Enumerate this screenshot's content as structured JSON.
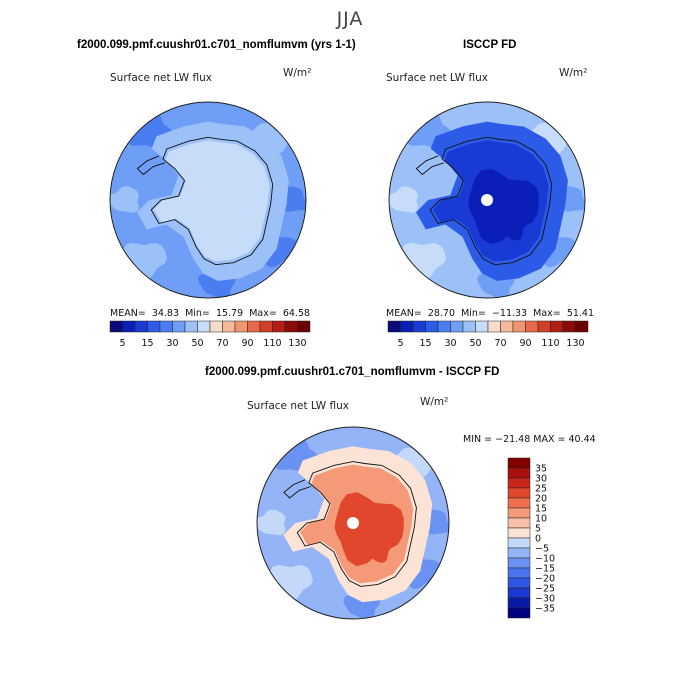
{
  "season": "JJA",
  "panels": {
    "model": {
      "title": "f2000.099.pmf.cuushr01.c701_nomflumvm (yrs 1-1)",
      "field": "Surface net LW flux",
      "units": "W/m²",
      "stats_label": {
        "mean": "MEAN=",
        "min": "Min=",
        "max": "Max="
      },
      "stats": {
        "mean": "34.83",
        "min": "15.79",
        "max": "64.58"
      }
    },
    "obs": {
      "title": "ISCCP FD",
      "field": "Surface net LW flux",
      "units": "W/m²",
      "stats_label": {
        "mean": "MEAN=",
        "min": "Min=",
        "max": "Max="
      },
      "stats": {
        "mean": "28.70",
        "min": "−11.33",
        "max": "51.41"
      }
    },
    "diff": {
      "title": "f2000.099.pmf.cuushr01.c701_nomflumvm - ISCCP FD",
      "field": "Surface net LW flux",
      "units": "W/m²",
      "stats_text": "MIN = −21.48 MAX =  40.44"
    }
  },
  "chart_data": [
    {
      "type": "heatmap",
      "projection": "polar stereographic (Southern Hemisphere)",
      "title": "f2000.099.pmf.cuushr01.c701_nomflumvm (yrs 1-1)",
      "field": "Surface net LW flux",
      "units": "W/m2",
      "stats": {
        "mean": 34.83,
        "min": 15.79,
        "max": 64.58
      },
      "colorbar": {
        "orientation": "horizontal",
        "levels": [
          5,
          10,
          15,
          20,
          30,
          40,
          50,
          60,
          70,
          80,
          90,
          100,
          110,
          120,
          130
        ],
        "tick_labels": [
          "5",
          "15",
          "30",
          "50",
          "70",
          "90",
          "110",
          "130"
        ],
        "colors": [
          "#0a0a7a",
          "#0b1fb8",
          "#1a3ad6",
          "#2c5be8",
          "#4a7ef0",
          "#6e9ef6",
          "#9cc0f8",
          "#c6dcf9",
          "#f6ddca",
          "#f6b99c",
          "#f29470",
          "#e8684a",
          "#d04028",
          "#b21e14",
          "#8c0a0a",
          "#6b0000"
        ]
      },
      "regions": [
        {
          "name": "background ocean",
          "level_index": 5
        },
        {
          "name": "Antarctic interior",
          "level_index": 6
        },
        {
          "name": "high plateau",
          "level_index": 7
        }
      ]
    },
    {
      "type": "heatmap",
      "projection": "polar stereographic (Southern Hemisphere)",
      "title": "ISCCP FD",
      "field": "Surface net LW flux",
      "units": "W/m2",
      "stats": {
        "mean": 28.7,
        "min": -11.33,
        "max": 51.41
      },
      "colorbar": {
        "orientation": "horizontal",
        "levels": [
          5,
          10,
          15,
          20,
          30,
          40,
          50,
          60,
          70,
          80,
          90,
          100,
          110,
          120,
          130
        ],
        "tick_labels": [
          "5",
          "15",
          "30",
          "50",
          "70",
          "90",
          "110",
          "130"
        ],
        "colors": [
          "#0a0a7a",
          "#0b1fb8",
          "#1a3ad6",
          "#2c5be8",
          "#4a7ef0",
          "#6e9ef6",
          "#9cc0f8",
          "#c6dcf9",
          "#f6ddca",
          "#f6b99c",
          "#f29470",
          "#e8684a",
          "#d04028",
          "#b21e14",
          "#8c0a0a",
          "#6b0000"
        ]
      },
      "regions": [
        {
          "name": "outer ocean",
          "level_index": 6
        },
        {
          "name": "sea ice zone",
          "level_index": 3
        },
        {
          "name": "Antarctic interior",
          "level_index": 1
        }
      ]
    },
    {
      "type": "heatmap",
      "projection": "polar stereographic (Southern Hemisphere)",
      "title": "f2000.099.pmf.cuushr01.c701_nomflumvm - ISCCP FD",
      "field": "Surface net LW flux",
      "units": "W/m2",
      "stats": {
        "min": -21.48,
        "max": 40.44
      },
      "colorbar": {
        "orientation": "vertical",
        "levels": [
          -35,
          -30,
          -25,
          -20,
          -15,
          -10,
          -5,
          0,
          5,
          10,
          15,
          20,
          25,
          30,
          35
        ],
        "tick_labels": [
          "35",
          "30",
          "25",
          "20",
          "15",
          "10",
          "5",
          "0",
          "−5",
          "−10",
          "−15",
          "−20",
          "−25",
          "−30",
          "−35"
        ],
        "colors": [
          "#000080",
          "#0a1aa8",
          "#1a37cf",
          "#2f55e4",
          "#4a74ee",
          "#6a92f2",
          "#93b4f6",
          "#c4d8fa",
          "#fbe3d6",
          "#f7c0a6",
          "#f49a78",
          "#ee7050",
          "#e0472c",
          "#c9261a",
          "#a90f0d",
          "#800000"
        ]
      },
      "regions": [
        {
          "name": "outer ocean",
          "level_index": 6
        },
        {
          "name": "near-coast ring",
          "level_index": 8
        },
        {
          "name": "Antarctic interior",
          "level_index": 12
        }
      ]
    }
  ]
}
